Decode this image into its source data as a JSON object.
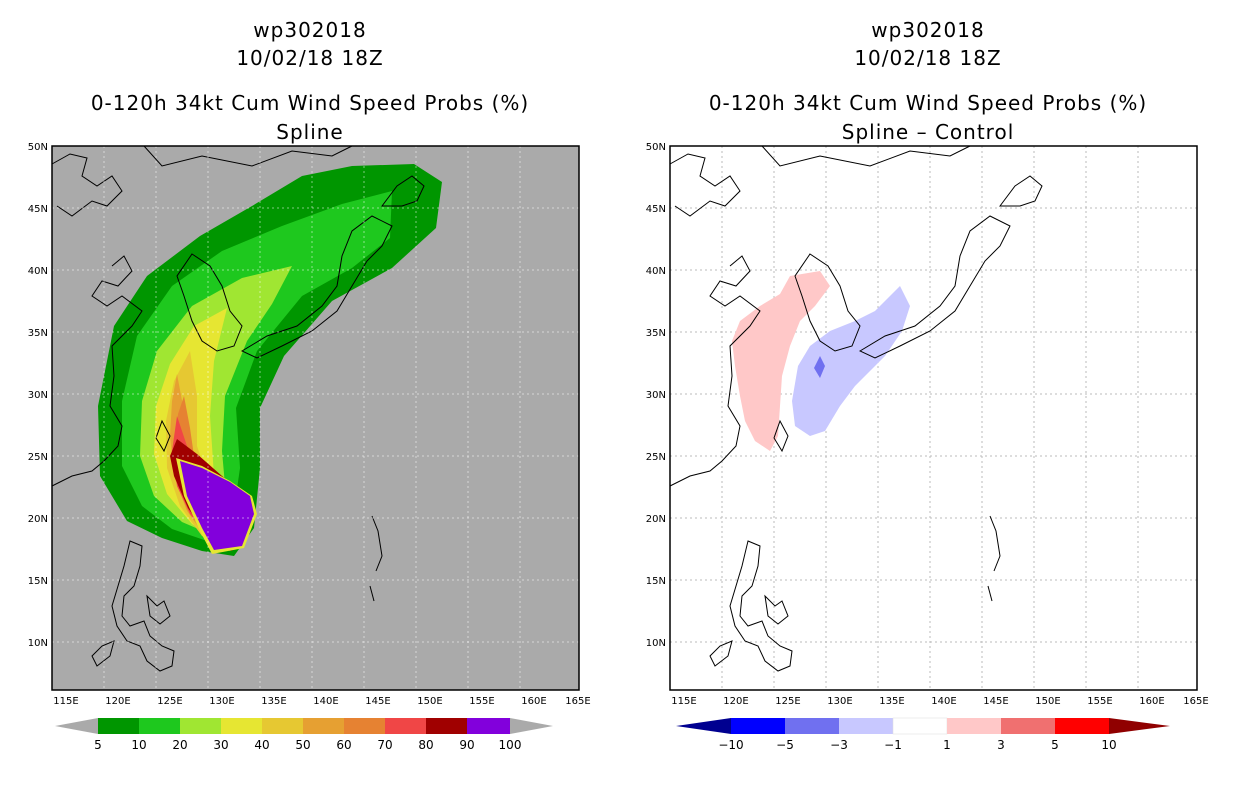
{
  "left_panel": {
    "storm_id": "wp302018",
    "datetime": "10/02/18 18Z",
    "product": "0-120h 34kt Cum Wind Speed Probs (%)",
    "subtitle": "Spline",
    "lat_labels": [
      "50N",
      "45N",
      "40N",
      "35N",
      "30N",
      "25N",
      "20N",
      "15N",
      "10N"
    ],
    "lon_labels": [
      "115E",
      "120E",
      "125E",
      "130E",
      "135E",
      "140E",
      "145E",
      "150E",
      "155E",
      "160E",
      "165E"
    ],
    "colorbar": {
      "labels": [
        "5",
        "10",
        "20",
        "30",
        "40",
        "50",
        "60",
        "70",
        "80",
        "90",
        "100"
      ],
      "colors": [
        "#009600",
        "#1ec81e",
        "#a0e632",
        "#e6e632",
        "#e6c832",
        "#e6a032",
        "#e68232",
        "#f04646",
        "#a00000",
        "#8200dc"
      ]
    }
  },
  "right_panel": {
    "storm_id": "wp302018",
    "datetime": "10/02/18 18Z",
    "product": "0-120h 34kt Cum Wind Speed Probs (%)",
    "subtitle": "Spline – Control",
    "lat_labels": [
      "50N",
      "45N",
      "40N",
      "35N",
      "30N",
      "25N",
      "20N",
      "15N",
      "10N"
    ],
    "lon_labels": [
      "115E",
      "120E",
      "125E",
      "130E",
      "135E",
      "140E",
      "145E",
      "150E",
      "155E",
      "160E",
      "165E"
    ],
    "colorbar": {
      "labels": [
        "−10",
        "−5",
        "−3",
        "−1",
        "1",
        "3",
        "5",
        "10"
      ],
      "colors": [
        "#000090",
        "#0000ff",
        "#7070f0",
        "#c8c8ff",
        "#ffffff",
        "#ffc8c8",
        "#f07070",
        "#ff0000",
        "#900000"
      ]
    }
  }
}
